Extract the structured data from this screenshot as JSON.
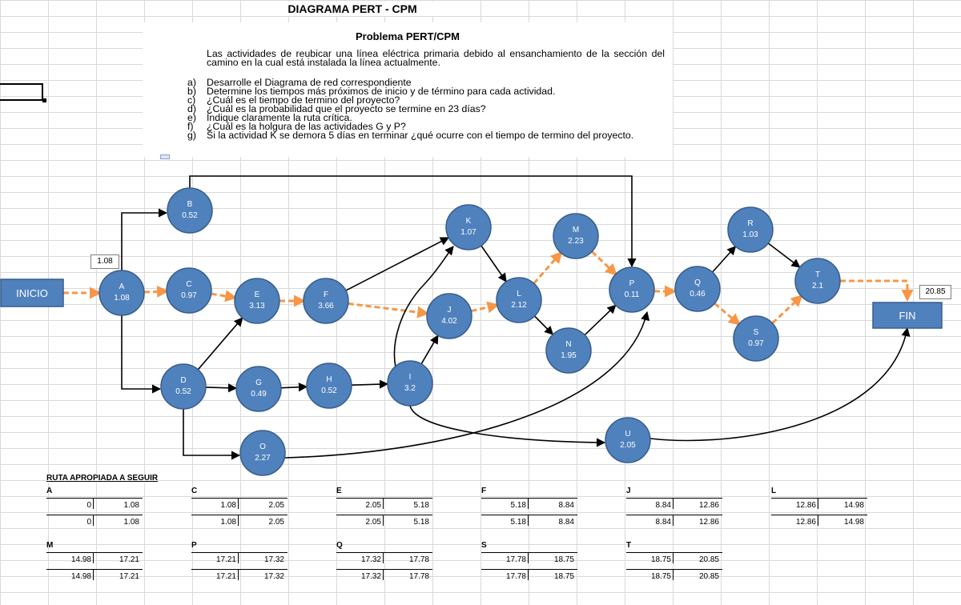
{
  "title": "DIAGRAMA PERT - CPM",
  "problem": {
    "heading": "Problema PERT/CPM",
    "intro": "Las actividades de reubicar una línea eléctrica primaria debido al ensanchamiento de la sección del camino en la cual está instalada la línea actualmente.",
    "questions": [
      {
        "letter": "a)",
        "text": "Desarrolle el Diagrama de red correspondiente"
      },
      {
        "letter": "b)",
        "text": "Determine los tiempos más próximos de inicio y de término para cada actividad."
      },
      {
        "letter": "c)",
        "text": "¿Cuál es el tiempo de termino del proyecto?"
      },
      {
        "letter": "d)",
        "text": "¿Cuál es la probabilidad que el proyecto se termine en 23 días?"
      },
      {
        "letter": "e)",
        "text": "Indique claramente la ruta crítica."
      },
      {
        "letter": "f)",
        "text": "¿Cuál es la holgura de las actividades G y P?"
      },
      {
        "letter": "g)",
        "text": "Si la actividad K se demora 5 días en terminar ¿qué ocurre con el tiempo de termino del proyecto."
      }
    ]
  },
  "diagram": {
    "start_label": "INICIO",
    "end_label": "FIN",
    "start_value": "1.08",
    "end_value": "20.85",
    "nodes": [
      {
        "id": "A",
        "value": "1.08"
      },
      {
        "id": "B",
        "value": "0.52"
      },
      {
        "id": "C",
        "value": "0.97"
      },
      {
        "id": "D",
        "value": "0.52"
      },
      {
        "id": "E",
        "value": "3.13"
      },
      {
        "id": "F",
        "value": "3.66"
      },
      {
        "id": "G",
        "value": "0.49"
      },
      {
        "id": "H",
        "value": "0.52"
      },
      {
        "id": "I",
        "value": "3.2"
      },
      {
        "id": "J",
        "value": "4.02"
      },
      {
        "id": "K",
        "value": "1.07"
      },
      {
        "id": "L",
        "value": "2.12"
      },
      {
        "id": "M",
        "value": "2.23"
      },
      {
        "id": "N",
        "value": "1.95"
      },
      {
        "id": "O",
        "value": "2.27"
      },
      {
        "id": "P",
        "value": "0.11"
      },
      {
        "id": "Q",
        "value": "0.46"
      },
      {
        "id": "R",
        "value": "1.03"
      },
      {
        "id": "S",
        "value": "0.97"
      },
      {
        "id": "T",
        "value": "2.1"
      },
      {
        "id": "U",
        "value": "2.05"
      }
    ],
    "edges": [
      {
        "from": "INICIO",
        "to": "A",
        "critical": true
      },
      {
        "from": "A",
        "to": "C",
        "critical": true
      },
      {
        "from": "C",
        "to": "E",
        "critical": true
      },
      {
        "from": "E",
        "to": "F",
        "critical": true
      },
      {
        "from": "F",
        "to": "J",
        "critical": true
      },
      {
        "from": "J",
        "to": "L",
        "critical": true
      },
      {
        "from": "L",
        "to": "M",
        "critical": true
      },
      {
        "from": "M",
        "to": "P",
        "critical": true
      },
      {
        "from": "P",
        "to": "Q",
        "critical": true
      },
      {
        "from": "Q",
        "to": "S",
        "critical": true
      },
      {
        "from": "S",
        "to": "T",
        "critical": true
      },
      {
        "from": "T",
        "to": "FIN",
        "critical": true
      },
      {
        "from": "A",
        "to": "B",
        "critical": false
      },
      {
        "from": "A",
        "to": "D",
        "critical": false
      },
      {
        "from": "B",
        "to": "P",
        "critical": false
      },
      {
        "from": "D",
        "to": "E",
        "critical": false
      },
      {
        "from": "D",
        "to": "G",
        "critical": false
      },
      {
        "from": "D",
        "to": "O",
        "critical": false
      },
      {
        "from": "G",
        "to": "H",
        "critical": false
      },
      {
        "from": "H",
        "to": "I",
        "critical": false
      },
      {
        "from": "I",
        "to": "J",
        "critical": false
      },
      {
        "from": "I",
        "to": "K",
        "critical": false
      },
      {
        "from": "I",
        "to": "U",
        "critical": false
      },
      {
        "from": "F",
        "to": "K",
        "critical": false
      },
      {
        "from": "K",
        "to": "L",
        "critical": false
      },
      {
        "from": "L",
        "to": "N",
        "critical": false
      },
      {
        "from": "N",
        "to": "P",
        "critical": false
      },
      {
        "from": "O",
        "to": "P",
        "critical": false
      },
      {
        "from": "Q",
        "to": "R",
        "critical": false
      },
      {
        "from": "R",
        "to": "T",
        "critical": false
      },
      {
        "from": "U",
        "to": "FIN",
        "critical": false
      }
    ]
  },
  "route": {
    "title": "RUTA APROPIADA A SEGUIR",
    "blocks": [
      {
        "name": "A",
        "rows": [
          [
            "0",
            "1.08"
          ],
          [
            "0",
            "1.08"
          ]
        ]
      },
      {
        "name": "C",
        "rows": [
          [
            "1.08",
            "2.05"
          ],
          [
            "1.08",
            "2.05"
          ]
        ]
      },
      {
        "name": "E",
        "rows": [
          [
            "2.05",
            "5.18"
          ],
          [
            "2.05",
            "5.18"
          ]
        ]
      },
      {
        "name": "F",
        "rows": [
          [
            "5.18",
            "8.84"
          ],
          [
            "5.18",
            "8.84"
          ]
        ]
      },
      {
        "name": "J",
        "rows": [
          [
            "8.84",
            "12.86"
          ],
          [
            "8.84",
            "12.86"
          ]
        ]
      },
      {
        "name": "L",
        "rows": [
          [
            "12.86",
            "14.98"
          ],
          [
            "12.86",
            "14.98"
          ]
        ]
      },
      {
        "name": "M",
        "rows": [
          [
            "14.98",
            "17.21"
          ],
          [
            "14.98",
            "17.21"
          ]
        ]
      },
      {
        "name": "P",
        "rows": [
          [
            "17.21",
            "17.32"
          ],
          [
            "17.21",
            "17.32"
          ]
        ]
      },
      {
        "name": "Q",
        "rows": [
          [
            "17.32",
            "17.78"
          ],
          [
            "17.32",
            "17.78"
          ]
        ]
      },
      {
        "name": "S",
        "rows": [
          [
            "17.78",
            "18.75"
          ],
          [
            "17.78",
            "18.75"
          ]
        ]
      },
      {
        "name": "T",
        "rows": [
          [
            "18.75",
            "20.85"
          ],
          [
            "18.75",
            "20.85"
          ]
        ]
      }
    ]
  },
  "colors": {
    "node_fill": "#4f81bd",
    "node_stroke": "#385d8a",
    "critical_path": "#f79646",
    "grid": "#d9d9d9"
  }
}
